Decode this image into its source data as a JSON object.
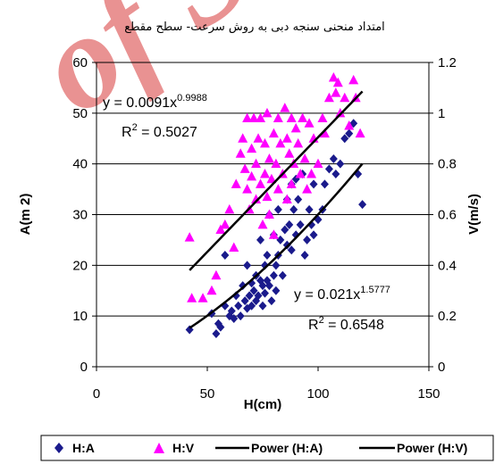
{
  "chart_data": {
    "type": "scatter",
    "title": "امتداد منحنی سنجه دبی به روش سرعت- سطح مقطع",
    "xlabel": "H(cm)",
    "ylabel_left": "A(m 2)",
    "ylabel_right": "V(m/s)",
    "xlim": [
      0,
      150
    ],
    "ylim_left": [
      0,
      60
    ],
    "ylim_right": [
      0,
      1.2
    ],
    "xticks": [
      "0",
      "50",
      "100",
      "150"
    ],
    "yticks_left": [
      "0",
      "10",
      "20",
      "30",
      "40",
      "50",
      "60"
    ],
    "yticks_right": [
      "0",
      "0.2",
      "0.4",
      "0.6",
      "0.8",
      "1",
      "1.2"
    ],
    "grid": "horizontal",
    "legend_position": "bottom",
    "legend": [
      "H:A",
      "H:V",
      "Power (H:A)",
      "Power (H:V)"
    ],
    "colors": {
      "HA": "#1a1a8c",
      "HV": "#ff00ff",
      "fit": "#000000"
    },
    "series": [
      {
        "name": "H:A",
        "axis": "left",
        "marker": "diamond",
        "points": [
          [
            42,
            7.3
          ],
          [
            52,
            10.5
          ],
          [
            54,
            6.5
          ],
          [
            55,
            8.5
          ],
          [
            56,
            7.8
          ],
          [
            58,
            12
          ],
          [
            58,
            22
          ],
          [
            60,
            10
          ],
          [
            61,
            11
          ],
          [
            62,
            9.5
          ],
          [
            63,
            14
          ],
          [
            64,
            12
          ],
          [
            65,
            10
          ],
          [
            66,
            16
          ],
          [
            67,
            13
          ],
          [
            68,
            11.5
          ],
          [
            68,
            20
          ],
          [
            69,
            14
          ],
          [
            70,
            12
          ],
          [
            70,
            16.5
          ],
          [
            71,
            15
          ],
          [
            72,
            13
          ],
          [
            72,
            18
          ],
          [
            73,
            14
          ],
          [
            74,
            17
          ],
          [
            74,
            25
          ],
          [
            75,
            12
          ],
          [
            75,
            16
          ],
          [
            76,
            20
          ],
          [
            76,
            14.5
          ],
          [
            77,
            17
          ],
          [
            77,
            22
          ],
          [
            78,
            16
          ],
          [
            78,
            30
          ],
          [
            79,
            13
          ],
          [
            80,
            18
          ],
          [
            80,
            26
          ],
          [
            81,
            20
          ],
          [
            81,
            15
          ],
          [
            82,
            22
          ],
          [
            82,
            31
          ],
          [
            83,
            25
          ],
          [
            84,
            18
          ],
          [
            85,
            27
          ],
          [
            86,
            24
          ],
          [
            86,
            33
          ],
          [
            87,
            28
          ],
          [
            88,
            23
          ],
          [
            88,
            36
          ],
          [
            89,
            31
          ],
          [
            90,
            26
          ],
          [
            90,
            37
          ],
          [
            91,
            33
          ],
          [
            92,
            28
          ],
          [
            93,
            38
          ],
          [
            94,
            22
          ],
          [
            95,
            25
          ],
          [
            96,
            31
          ],
          [
            97,
            28
          ],
          [
            98,
            26
          ],
          [
            98,
            36
          ],
          [
            100,
            29
          ],
          [
            102,
            31
          ],
          [
            103,
            36
          ],
          [
            105,
            39
          ],
          [
            107,
            41
          ],
          [
            108,
            38
          ],
          [
            110,
            40
          ],
          [
            112,
            45
          ],
          [
            114,
            46
          ],
          [
            116,
            48
          ],
          [
            118,
            38
          ],
          [
            120,
            32
          ]
        ]
      },
      {
        "name": "H:V",
        "axis": "right",
        "marker": "triangle",
        "points": [
          [
            42,
            0.51
          ],
          [
            43,
            0.27
          ],
          [
            48,
            0.27
          ],
          [
            52,
            0.3
          ],
          [
            54,
            0.36
          ],
          [
            56,
            0.54
          ],
          [
            58,
            0.56
          ],
          [
            60,
            0.62
          ],
          [
            62,
            0.47
          ],
          [
            63,
            0.72
          ],
          [
            65,
            0.84
          ],
          [
            66,
            0.9
          ],
          [
            67,
            0.78
          ],
          [
            68,
            0.7
          ],
          [
            68,
            0.98
          ],
          [
            69,
            0.62
          ],
          [
            70,
            0.75
          ],
          [
            70,
            0.86
          ],
          [
            71,
            0.98
          ],
          [
            72,
            0.8
          ],
          [
            72,
            0.66
          ],
          [
            73,
            0.9
          ],
          [
            74,
            0.98
          ],
          [
            74,
            0.72
          ],
          [
            75,
            0.56
          ],
          [
            76,
            0.88
          ],
          [
            76,
            0.76
          ],
          [
            77,
            0.67
          ],
          [
            77,
            1.0
          ],
          [
            78,
            0.82
          ],
          [
            78,
            0.6
          ],
          [
            79,
            0.74
          ],
          [
            80,
            0.92
          ],
          [
            80,
            0.52
          ],
          [
            81,
            0.8
          ],
          [
            82,
            0.7
          ],
          [
            82,
            0.98
          ],
          [
            83,
            0.88
          ],
          [
            84,
            0.76
          ],
          [
            85,
            1.02
          ],
          [
            86,
            0.66
          ],
          [
            86,
            0.9
          ],
          [
            87,
            0.84
          ],
          [
            88,
            0.72
          ],
          [
            88,
            0.98
          ],
          [
            89,
            0.8
          ],
          [
            90,
            0.94
          ],
          [
            91,
            0.88
          ],
          [
            92,
            0.76
          ],
          [
            93,
            0.98
          ],
          [
            94,
            0.82
          ],
          [
            95,
            0.7
          ],
          [
            96,
            0.96
          ],
          [
            97,
            0.76
          ],
          [
            98,
            0.9
          ],
          [
            100,
            0.8
          ],
          [
            102,
            0.98
          ],
          [
            103,
            0.92
          ],
          [
            105,
            1.06
          ],
          [
            107,
            1.14
          ],
          [
            108,
            1.08
          ],
          [
            109,
            1.12
          ],
          [
            110,
            1.0
          ],
          [
            112,
            1.06
          ],
          [
            114,
            0.95
          ],
          [
            116,
            1.13
          ],
          [
            117,
            1.06
          ],
          [
            119,
            0.92
          ]
        ]
      }
    ],
    "fits": [
      {
        "name": "Power (H:A)",
        "axis": "left",
        "coef": 0.021,
        "exp": 1.5777,
        "x_range": [
          42,
          120
        ],
        "eq_base": "y = 0.021x",
        "eq_exp": "1.5777",
        "r2_prefix": "R",
        "r2_sup": "2",
        "r2_val": " = 0.6548"
      },
      {
        "name": "Power (H:V)",
        "axis": "right",
        "coef": 0.0091,
        "exp": 0.9988,
        "x_range": [
          42,
          120
        ],
        "eq_base": "y = 0.0091x",
        "eq_exp": "0.9988",
        "r2_prefix": "R",
        "r2_sup": "2",
        "r2_val": " = 0.5027"
      }
    ]
  },
  "watermark_text": "of S"
}
